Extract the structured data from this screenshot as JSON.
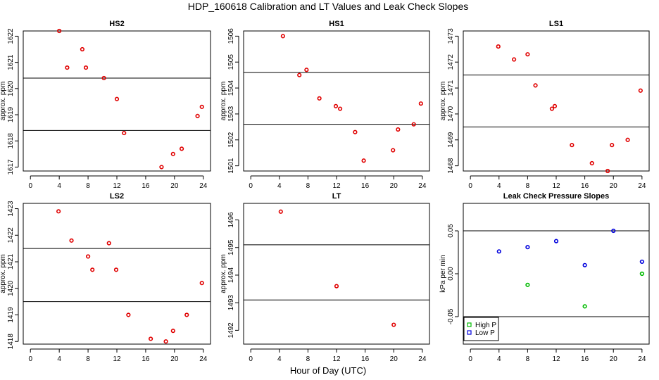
{
  "figure_title": "HDP_160618  Calibration and LT Values and Leak Check Slopes",
  "x_axis_label": "Hour of Day (UTC)",
  "colors": {
    "red": "#e00000",
    "green": "#00bb00",
    "blue": "#0000dd"
  },
  "chart_data": [
    {
      "id": "hs2",
      "type": "scatter",
      "title": "HS2",
      "ylabel": "approx. ppm",
      "xlim": [
        -1,
        25
      ],
      "ylim": [
        1616.85,
        1622.2
      ],
      "xticks": [
        0,
        4,
        8,
        12,
        16,
        20,
        24
      ],
      "yticks": [
        1617,
        1618,
        1619,
        1620,
        1621,
        1622
      ],
      "hlines": [
        1620.4,
        1618.4
      ],
      "series": [
        {
          "name": "values",
          "color": "red",
          "marker": "circle",
          "x": [
            4.0,
            5.1,
            7.2,
            7.7,
            10.2,
            12.0,
            13.0,
            18.2,
            19.8,
            21.0,
            23.2,
            23.8
          ],
          "y": [
            1622.2,
            1620.8,
            1621.5,
            1620.8,
            1620.4,
            1619.6,
            1618.3,
            1617.0,
            1617.5,
            1617.7,
            1618.95,
            1619.3
          ]
        }
      ]
    },
    {
      "id": "hs1",
      "type": "scatter",
      "title": "HS1",
      "ylabel": "approx. ppm",
      "xlim": [
        -1,
        25
      ],
      "ylim": [
        1500.8,
        1506.2
      ],
      "xticks": [
        0,
        4,
        8,
        12,
        16,
        20,
        24
      ],
      "yticks": [
        1501,
        1502,
        1503,
        1504,
        1505,
        1506
      ],
      "hlines": [
        1504.6,
        1502.6
      ],
      "series": [
        {
          "name": "values",
          "color": "red",
          "marker": "circle",
          "x": [
            4.5,
            6.8,
            7.8,
            9.6,
            11.9,
            12.5,
            14.6,
            15.8,
            19.9,
            20.6,
            22.8,
            23.8
          ],
          "y": [
            1506.0,
            1504.5,
            1504.7,
            1503.6,
            1503.3,
            1503.2,
            1502.3,
            1501.2,
            1501.6,
            1502.4,
            1502.6,
            1503.4
          ]
        }
      ]
    },
    {
      "id": "ls1",
      "type": "scatter",
      "title": "LS1",
      "ylabel": "approx. ppm",
      "xlim": [
        -1,
        25
      ],
      "ylim": [
        1467.8,
        1473.2
      ],
      "xticks": [
        0,
        4,
        8,
        12,
        16,
        20,
        24
      ],
      "yticks": [
        1468,
        1469,
        1470,
        1471,
        1472,
        1473
      ],
      "hlines": [
        1471.5,
        1469.5
      ],
      "series": [
        {
          "name": "values",
          "color": "red",
          "marker": "circle",
          "x": [
            3.9,
            6.1,
            8.0,
            9.1,
            11.4,
            11.8,
            14.2,
            17.0,
            19.2,
            19.8,
            22.0,
            23.8
          ],
          "y": [
            1472.6,
            1472.1,
            1472.3,
            1471.1,
            1470.2,
            1470.3,
            1468.8,
            1468.1,
            1467.8,
            1468.8,
            1469.0,
            1470.9
          ]
        }
      ]
    },
    {
      "id": "ls2",
      "type": "scatter",
      "title": "LS2",
      "ylabel": "approx. ppm",
      "xlim": [
        -1,
        25
      ],
      "ylim": [
        1417.9,
        1423.2
      ],
      "xticks": [
        0,
        4,
        8,
        12,
        16,
        20,
        24
      ],
      "yticks": [
        1418,
        1419,
        1420,
        1421,
        1422,
        1423
      ],
      "hlines": [
        1421.5,
        1419.5
      ],
      "series": [
        {
          "name": "values",
          "color": "red",
          "marker": "circle",
          "x": [
            3.9,
            5.7,
            8.0,
            8.6,
            10.9,
            11.9,
            13.6,
            16.7,
            18.8,
            19.8,
            21.7,
            23.8
          ],
          "y": [
            1422.9,
            1421.8,
            1421.2,
            1420.7,
            1421.7,
            1420.7,
            1419.0,
            1418.1,
            1418.0,
            1418.4,
            1419.0,
            1420.2
          ]
        }
      ]
    },
    {
      "id": "lt",
      "type": "scatter",
      "title": "LT",
      "ylabel": "approx. ppm",
      "xlim": [
        -1,
        25
      ],
      "ylim": [
        1491.5,
        1496.6
      ],
      "xticks": [
        0,
        4,
        8,
        12,
        16,
        20,
        24
      ],
      "yticks": [
        1492,
        1493,
        1494,
        1495,
        1496
      ],
      "hlines": [
        1495.1,
        1493.1
      ],
      "series": [
        {
          "name": "values",
          "color": "red",
          "marker": "circle",
          "x": [
            4.2,
            12.0,
            20.0
          ],
          "y": [
            1496.3,
            1493.6,
            1492.2
          ]
        }
      ]
    },
    {
      "id": "leak",
      "type": "scatter",
      "title": "Leak Check Pressure Slopes",
      "ylabel": "kPa per min",
      "xlim": [
        -1,
        25
      ],
      "ylim": [
        -0.082,
        0.082
      ],
      "xticks": [
        0,
        4,
        8,
        12,
        16,
        20,
        24
      ],
      "yticks": [
        -0.05,
        0.0,
        0.05
      ],
      "ytick_labels": [
        "-0.05",
        "0.00",
        "0.05"
      ],
      "hlines": [
        0.05,
        -0.05
      ],
      "legend": {
        "position": "bottom-left",
        "entries": [
          "High P",
          "Low P"
        ]
      },
      "series": [
        {
          "name": "High P",
          "color": "green",
          "marker": "circle",
          "x": [
            8.0,
            16.0,
            24.0
          ],
          "y": [
            -0.013,
            -0.038,
            0.0
          ]
        },
        {
          "name": "Low P",
          "color": "blue",
          "marker": "circle",
          "x": [
            4.0,
            8.0,
            12.0,
            16.0,
            20.0,
            24.0
          ],
          "y": [
            0.026,
            0.031,
            0.038,
            0.01,
            0.05,
            0.014
          ]
        }
      ]
    }
  ]
}
